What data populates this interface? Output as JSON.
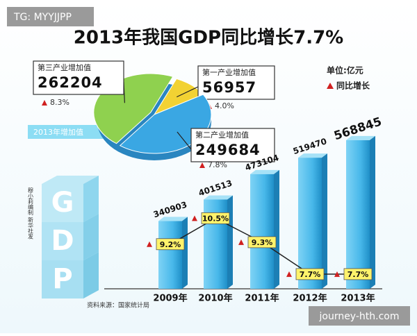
{
  "watermark": "TG: MYYJJPP",
  "footer_watermark": "journey-hth.com",
  "title": "2013年我国GDP同比增长7.7%",
  "unit": "单位:亿元",
  "source": "资料来源：国家统计局",
  "credit": "穆小莉编制 新华社发",
  "logo_letters": [
    "G",
    "D",
    "P"
  ],
  "chart_data": [
    {
      "type": "pie",
      "subtitle": "2013年增加值",
      "categories": [
        "第三产业增加值",
        "第一产业增加值",
        "第二产业增加值"
      ],
      "values": [
        262204,
        56957,
        249684
      ],
      "colors": [
        "#8fd14f",
        "#f2d233",
        "#3aa7e3"
      ],
      "growth": [
        8.3,
        4.0,
        7.8
      ],
      "growth_labels": [
        "8.3%",
        "4.0%",
        "7.8%"
      ]
    },
    {
      "type": "bar",
      "categories": [
        "2009年",
        "2010年",
        "2011年",
        "2012年",
        "2013年"
      ],
      "values": [
        340903,
        401513,
        473104,
        519470,
        568845
      ],
      "color": "#48b8ea",
      "ylim": [
        150000,
        600000
      ],
      "line": {
        "name": "同比增长",
        "color": "#222222",
        "values": [
          9.2,
          10.5,
          9.3,
          7.7,
          7.7
        ],
        "value_labels": [
          "9.2%",
          "10.5%",
          "9.3%",
          "7.7%",
          "7.7%"
        ],
        "y2lim": [
          7,
          11
        ]
      }
    }
  ]
}
